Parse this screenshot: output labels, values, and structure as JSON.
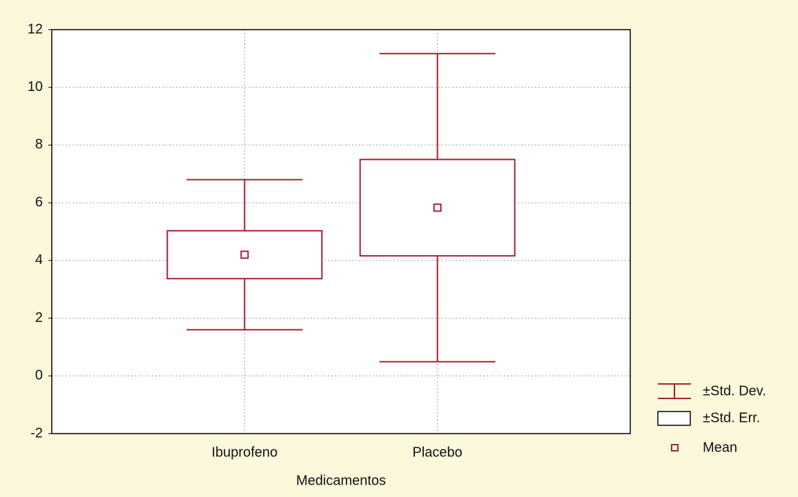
{
  "chart_data": {
    "type": "box",
    "categories": [
      "Ibuprofeno",
      "Placebo"
    ],
    "mean": [
      4.2,
      5.83
    ],
    "std_err": [
      0.83,
      1.67
    ],
    "std_dev": [
      2.6,
      5.34
    ],
    "xlabel": "Medicamentos",
    "legend": [
      "±Std. Dev.",
      "±Std. Err.",
      "Mean"
    ],
    "color": "#a3202e",
    "ylim": [
      -2,
      12
    ],
    "yticks": [
      -2,
      0,
      2,
      4,
      6,
      8,
      10,
      12
    ],
    "grid": true
  }
}
